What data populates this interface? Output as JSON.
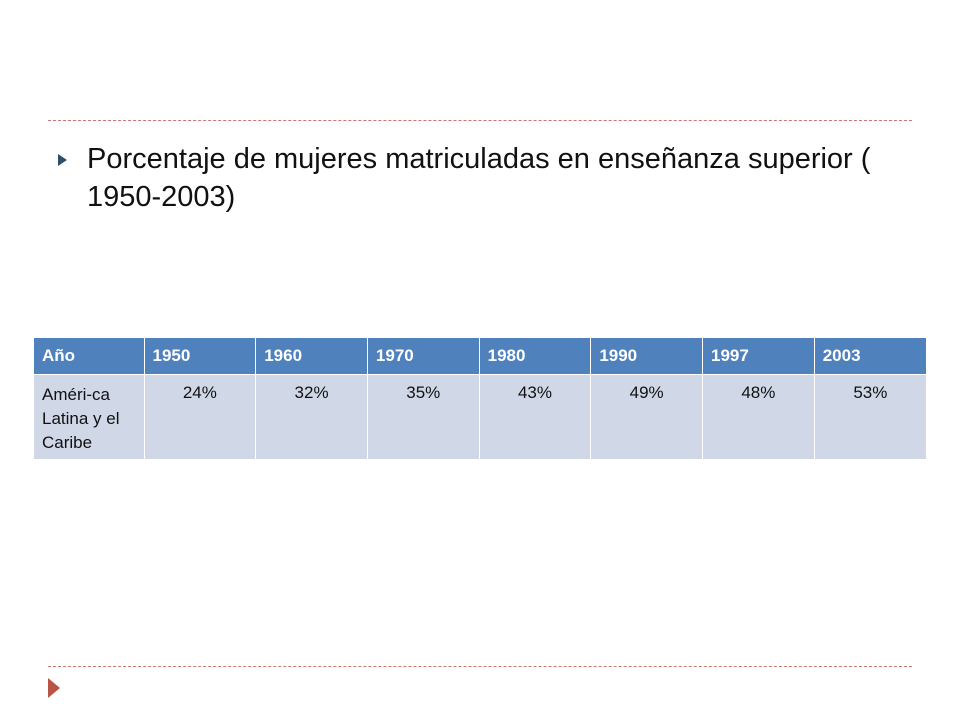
{
  "slide": {
    "bullet_text": "Porcentaje de mujeres matriculadas en enseñanza superior ( 1950-2003)"
  },
  "table": {
    "header": [
      "Año",
      "1950",
      "1960",
      "1970",
      "1980",
      "1990",
      "1997",
      "2003"
    ],
    "rows": [
      {
        "region": "Améri-ca Latina y el Caribe",
        "values": [
          "24%",
          "32%",
          "35%",
          "43%",
          "49%",
          "48%",
          "53%"
        ]
      }
    ]
  },
  "colors": {
    "header_bg": "#4f81bd",
    "cell_bg": "#d0d8e8",
    "bullet": "#2d4f6b",
    "rule": "#c87a6e",
    "corner_arrow": "#b85544"
  }
}
